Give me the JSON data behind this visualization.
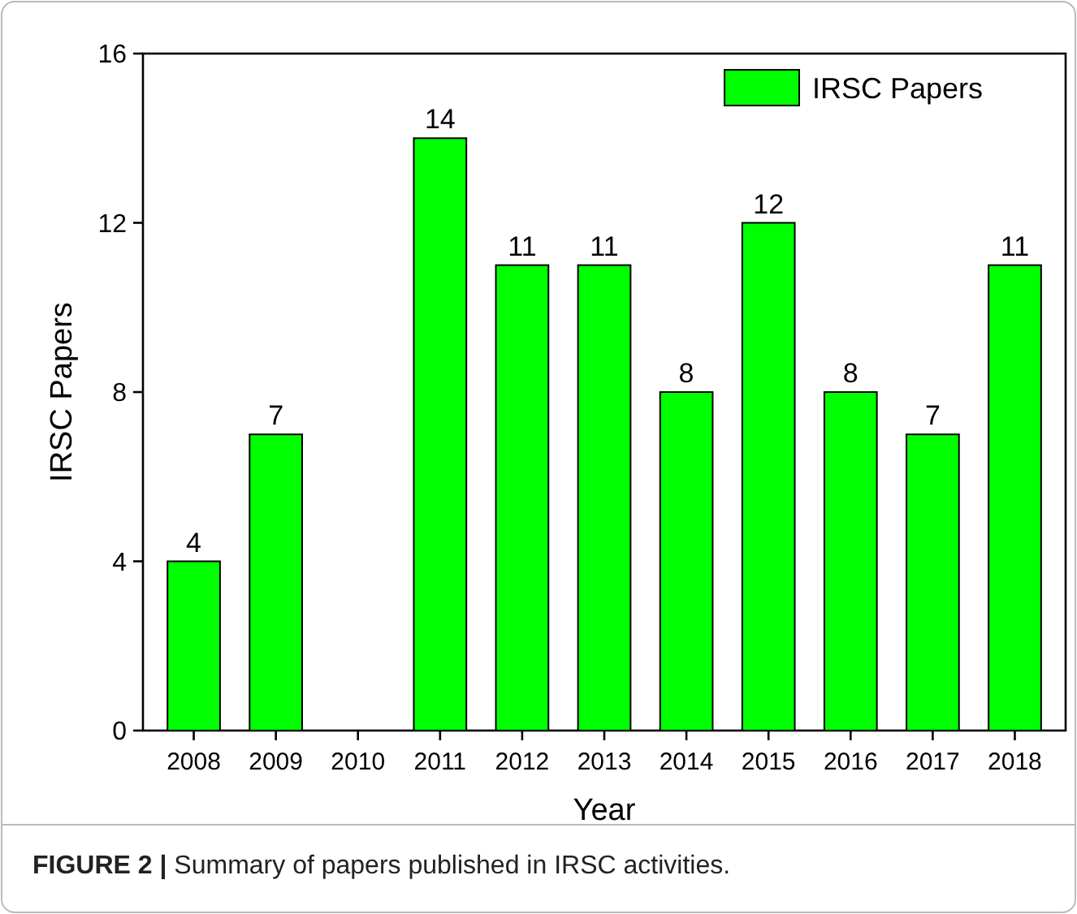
{
  "chart_data": {
    "type": "bar",
    "xlabel": "Year",
    "ylabel": "IRSC Papers",
    "categories": [
      "2008",
      "2009",
      "2010",
      "2011",
      "2012",
      "2013",
      "2014",
      "2015",
      "2016",
      "2017",
      "2018"
    ],
    "series": [
      {
        "name": "IRSC Papers",
        "color": "#00ff00",
        "values": [
          4,
          7,
          0,
          14,
          11,
          11,
          8,
          12,
          8,
          7,
          11
        ],
        "value_labels": [
          "4",
          "7",
          null,
          "14",
          "11",
          "11",
          "8",
          "12",
          "8",
          "7",
          "11"
        ]
      }
    ],
    "ylim": [
      0,
      16
    ],
    "yticks": [
      0,
      4,
      8,
      12,
      16
    ],
    "legend": "top right",
    "annotations": [
      "FIGURE 2 | Summary of papers published in IRSC activities."
    ]
  }
}
